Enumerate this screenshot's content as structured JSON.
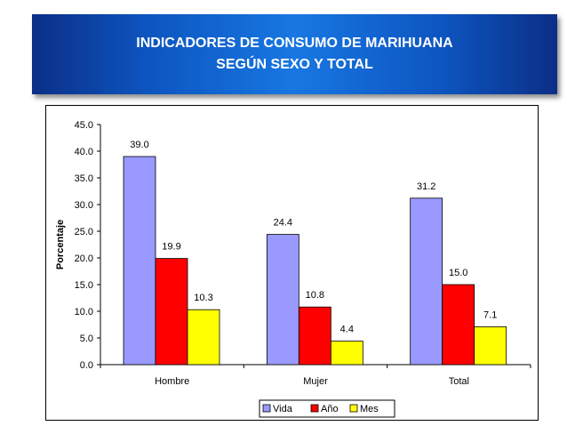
{
  "title": {
    "line1": "INDICADORES DE CONSUMO DE MARIHUANA",
    "line2": "SEGÚN SEXO Y TOTAL"
  },
  "chart_data": {
    "type": "bar",
    "ylabel": "Porcentaje",
    "xlabel": "",
    "ylim": [
      0,
      45
    ],
    "yticks": [
      "0.0",
      "5.0",
      "10.0",
      "15.0",
      "20.0",
      "25.0",
      "30.0",
      "35.0",
      "40.0",
      "45.0"
    ],
    "categories": [
      "Hombre",
      "Mujer",
      "Total"
    ],
    "series": [
      {
        "name": "Vida",
        "color": "#9999ff",
        "values": [
          39.0,
          24.4,
          31.2
        ],
        "labels": [
          "39.0",
          "24.4",
          "31.2"
        ]
      },
      {
        "name": "Año",
        "color": "#ff0000",
        "values": [
          19.9,
          10.8,
          15.0
        ],
        "labels": [
          "19.9",
          "10.8",
          "15.0"
        ]
      },
      {
        "name": "Mes",
        "color": "#ffff00",
        "values": [
          10.3,
          4.4,
          7.1
        ],
        "labels": [
          "10.3",
          "4.4",
          "7.1"
        ]
      }
    ],
    "grid": false,
    "legend_position": "bottom"
  }
}
